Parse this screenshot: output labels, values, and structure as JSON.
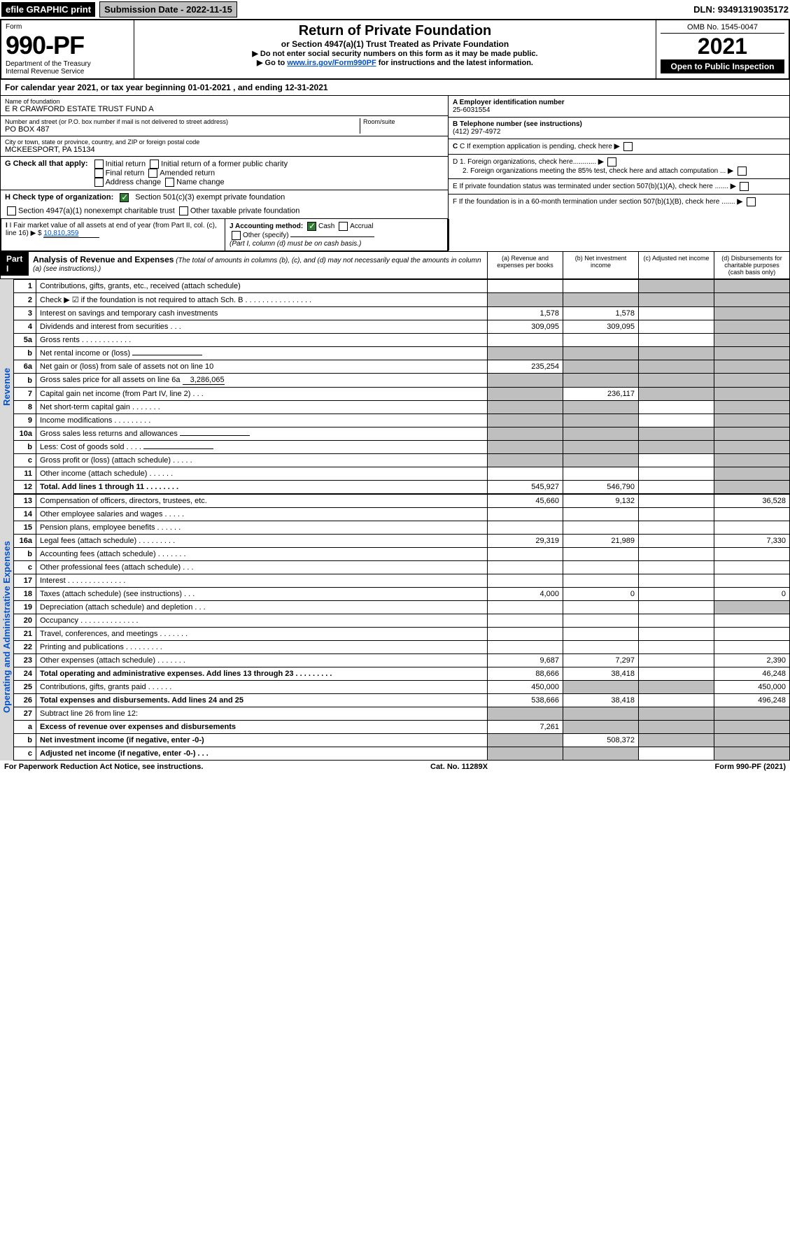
{
  "top": {
    "efile": "efile GRAPHIC print",
    "submission": "Submission Date - 2022-11-15",
    "dln": "DLN: 93491319035172"
  },
  "header": {
    "form_word": "Form",
    "form_num": "990-PF",
    "dept": "Department of the Treasury",
    "irs": "Internal Revenue Service",
    "title": "Return of Private Foundation",
    "subtitle": "or Section 4947(a)(1) Trust Treated as Private Foundation",
    "instr1": "▶ Do not enter social security numbers on this form as it may be made public.",
    "instr2_prefix": "▶ Go to ",
    "instr2_link": "www.irs.gov/Form990PF",
    "instr2_suffix": " for instructions and the latest information.",
    "omb": "OMB No. 1545-0047",
    "year": "2021",
    "open": "Open to Public Inspection"
  },
  "calendar": {
    "prefix": "For calendar year 2021, or tax year beginning ",
    "begin": "01-01-2021",
    "mid": " , and ending ",
    "end": "12-31-2021"
  },
  "name_block": {
    "name_label": "Name of foundation",
    "name": "E R CRAWFORD ESTATE TRUST FUND A",
    "addr_label": "Number and street (or P.O. box number if mail is not delivered to street address)",
    "addr": "PO BOX 487",
    "room_label": "Room/suite",
    "city_label": "City or town, state or province, country, and ZIP or foreign postal code",
    "city": "MCKEESPORT, PA  15134"
  },
  "a_block": {
    "label": "A Employer identification number",
    "val": "25-6031554"
  },
  "b_block": {
    "label": "B Telephone number (see instructions)",
    "val": "(412) 297-4972"
  },
  "c_block": {
    "label": "C If exemption application is pending, check here"
  },
  "d_block": {
    "d1": "D 1. Foreign organizations, check here............",
    "d2": "2. Foreign organizations meeting the 85% test, check here and attach computation ..."
  },
  "e_block": {
    "label": "E  If private foundation status was terminated under section 507(b)(1)(A), check here ......."
  },
  "f_block": {
    "label": "F  If the foundation is in a 60-month termination under section 507(b)(1)(B), check here ......."
  },
  "g_block": {
    "label": "G Check all that apply:",
    "opts": [
      "Initial return",
      "Initial return of a former public charity",
      "Final return",
      "Amended return",
      "Address change",
      "Name change"
    ]
  },
  "h_block": {
    "label": "H Check type of organization:",
    "opt1": "Section 501(c)(3) exempt private foundation",
    "opt2": "Section 4947(a)(1) nonexempt charitable trust",
    "opt3": "Other taxable private foundation"
  },
  "i_block": {
    "label": "I Fair market value of all assets at end of year (from Part II, col. (c), line 16) ▶ $ ",
    "val": "10,810,359"
  },
  "j_block": {
    "label": "J Accounting method:",
    "cash": "Cash",
    "accrual": "Accrual",
    "other": "Other (specify)",
    "note": "(Part I, column (d) must be on cash basis.)"
  },
  "part1": {
    "label": "Part I",
    "title": "Analysis of Revenue and Expenses",
    "sub": " (The total of amounts in columns (b), (c), and (d) may not necessarily equal the amounts in column (a) (see instructions).)",
    "col_a": "(a) Revenue and expenses per books",
    "col_b": "(b) Net investment income",
    "col_c": "(c) Adjusted net income",
    "col_d": "(d) Disbursements for charitable purposes (cash basis only)"
  },
  "side_labels": {
    "rev": "Revenue",
    "exp": "Operating and Administrative Expenses"
  },
  "rows": [
    {
      "n": "1",
      "t": "Contributions, gifts, grants, etc., received (attach schedule)",
      "a": "",
      "b": "",
      "c": "s",
      "d": "s"
    },
    {
      "n": "2",
      "t": "Check ▶ ☑ if the foundation is not required to attach Sch. B   .  .  .  .  .  .  .  .  .  .  .  .  .  .  .  .",
      "a": "s",
      "b": "s",
      "c": "s",
      "d": "s",
      "checked": true,
      "bold_word": "not"
    },
    {
      "n": "3",
      "t": "Interest on savings and temporary cash investments",
      "a": "1,578",
      "b": "1,578",
      "c": "",
      "d": "s"
    },
    {
      "n": "4",
      "t": "Dividends and interest from securities   .  .  .",
      "a": "309,095",
      "b": "309,095",
      "c": "",
      "d": "s"
    },
    {
      "n": "5a",
      "t": "Gross rents   .  .  .  .  .  .  .  .  .  .  .  .",
      "a": "",
      "b": "",
      "c": "",
      "d": "s"
    },
    {
      "n": "b",
      "t": "Net rental income or (loss) ",
      "a": "s",
      "b": "s",
      "c": "s",
      "d": "s",
      "inline_blank": true
    },
    {
      "n": "6a",
      "t": "Net gain or (loss) from sale of assets not on line 10",
      "a": "235,254",
      "b": "s",
      "c": "s",
      "d": "s"
    },
    {
      "n": "b",
      "t": "Gross sales price for all assets on line 6a",
      "a": "s",
      "b": "s",
      "c": "s",
      "d": "s",
      "inline_val": "3,286,065"
    },
    {
      "n": "7",
      "t": "Capital gain net income (from Part IV, line 2)   .  .  .",
      "a": "s",
      "b": "236,117",
      "c": "s",
      "d": "s"
    },
    {
      "n": "8",
      "t": "Net short-term capital gain  .  .  .  .  .  .  .",
      "a": "s",
      "b": "s",
      "c": "",
      "d": "s"
    },
    {
      "n": "9",
      "t": "Income modifications  .  .  .  .  .  .  .  .  .",
      "a": "s",
      "b": "s",
      "c": "",
      "d": "s"
    },
    {
      "n": "10a",
      "t": "Gross sales less returns and allowances",
      "a": "s",
      "b": "s",
      "c": "s",
      "d": "s",
      "inline_blank": true
    },
    {
      "n": "b",
      "t": "Less: Cost of goods sold   .  .  .  .",
      "a": "s",
      "b": "s",
      "c": "s",
      "d": "s",
      "inline_blank": true
    },
    {
      "n": "c",
      "t": "Gross profit or (loss) (attach schedule)   .  .  .  .  .",
      "a": "s",
      "b": "s",
      "c": "",
      "d": "s"
    },
    {
      "n": "11",
      "t": "Other income (attach schedule)   .  .  .  .  .  .",
      "a": "",
      "b": "",
      "c": "",
      "d": "s"
    },
    {
      "n": "12",
      "t": "Total. Add lines 1 through 11   .  .  .  .  .  .  .  .",
      "a": "545,927",
      "b": "546,790",
      "c": "",
      "d": "s",
      "bold": true
    }
  ],
  "exp_rows": [
    {
      "n": "13",
      "t": "Compensation of officers, directors, trustees, etc.",
      "a": "45,660",
      "b": "9,132",
      "c": "",
      "d": "36,528"
    },
    {
      "n": "14",
      "t": "Other employee salaries and wages   .  .  .  .  .",
      "a": "",
      "b": "",
      "c": "",
      "d": ""
    },
    {
      "n": "15",
      "t": "Pension plans, employee benefits  .  .  .  .  .  .",
      "a": "",
      "b": "",
      "c": "",
      "d": ""
    },
    {
      "n": "16a",
      "t": "Legal fees (attach schedule) .  .  .  .  .  .  .  .  .",
      "a": "29,319",
      "b": "21,989",
      "c": "",
      "d": "7,330"
    },
    {
      "n": "b",
      "t": "Accounting fees (attach schedule) .  .  .  .  .  .  .",
      "a": "",
      "b": "",
      "c": "",
      "d": ""
    },
    {
      "n": "c",
      "t": "Other professional fees (attach schedule)   .  .  .",
      "a": "",
      "b": "",
      "c": "",
      "d": ""
    },
    {
      "n": "17",
      "t": "Interest  .  .  .  .  .  .  .  .  .  .  .  .  .  .",
      "a": "",
      "b": "",
      "c": "",
      "d": ""
    },
    {
      "n": "18",
      "t": "Taxes (attach schedule) (see instructions)   .  .  .",
      "a": "4,000",
      "b": "0",
      "c": "",
      "d": "0"
    },
    {
      "n": "19",
      "t": "Depreciation (attach schedule) and depletion   .  .  .",
      "a": "",
      "b": "",
      "c": "",
      "d": "s"
    },
    {
      "n": "20",
      "t": "Occupancy .  .  .  .  .  .  .  .  .  .  .  .  .  .",
      "a": "",
      "b": "",
      "c": "",
      "d": ""
    },
    {
      "n": "21",
      "t": "Travel, conferences, and meetings .  .  .  .  .  .  .",
      "a": "",
      "b": "",
      "c": "",
      "d": ""
    },
    {
      "n": "22",
      "t": "Printing and publications  .  .  .  .  .  .  .  .  .",
      "a": "",
      "b": "",
      "c": "",
      "d": ""
    },
    {
      "n": "23",
      "t": "Other expenses (attach schedule) .  .  .  .  .  .  .",
      "a": "9,687",
      "b": "7,297",
      "c": "",
      "d": "2,390"
    },
    {
      "n": "24",
      "t": "Total operating and administrative expenses. Add lines 13 through 23   .  .  .  .  .  .  .  .  .",
      "a": "88,666",
      "b": "38,418",
      "c": "",
      "d": "46,248",
      "bold": true
    },
    {
      "n": "25",
      "t": "Contributions, gifts, grants paid   .  .  .  .  .  .",
      "a": "450,000",
      "b": "s",
      "c": "s",
      "d": "450,000"
    },
    {
      "n": "26",
      "t": "Total expenses and disbursements. Add lines 24 and 25",
      "a": "538,666",
      "b": "38,418",
      "c": "",
      "d": "496,248",
      "bold": true
    },
    {
      "n": "27",
      "t": "Subtract line 26 from line 12:",
      "a": "s",
      "b": "s",
      "c": "s",
      "d": "s"
    },
    {
      "n": "a",
      "t": "Excess of revenue over expenses and disbursements",
      "a": "7,261",
      "b": "s",
      "c": "s",
      "d": "s",
      "bold": true
    },
    {
      "n": "b",
      "t": "Net investment income (if negative, enter -0-)",
      "a": "s",
      "b": "508,372",
      "c": "s",
      "d": "s",
      "bold": true
    },
    {
      "n": "c",
      "t": "Adjusted net income (if negative, enter -0-)   .  .  .",
      "a": "s",
      "b": "s",
      "c": "",
      "d": "s",
      "bold": true
    }
  ],
  "footer": {
    "left": "For Paperwork Reduction Act Notice, see instructions.",
    "mid": "Cat. No. 11289X",
    "right": "Form 990-PF (2021)"
  }
}
